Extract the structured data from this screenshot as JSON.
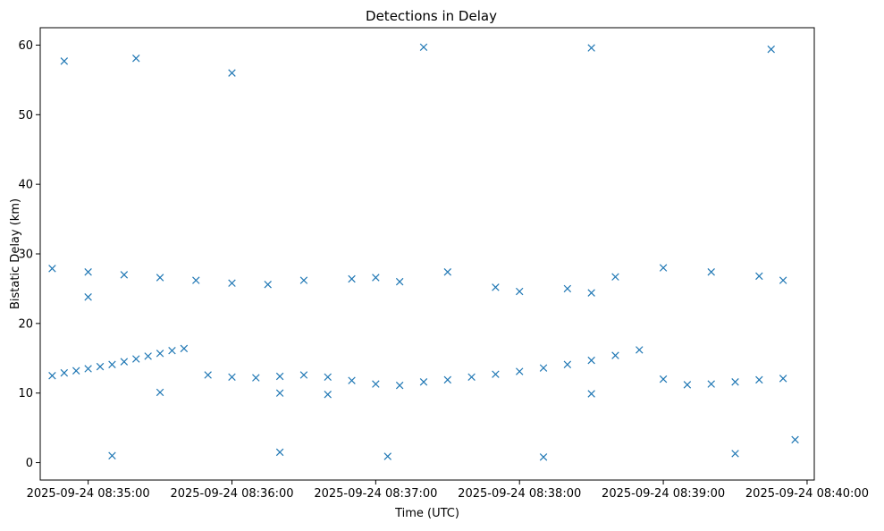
{
  "chart_data": {
    "type": "scatter",
    "title": "Detections in Delay",
    "xlabel": "Time (UTC)",
    "ylabel": "Bistatic Delay (km)",
    "marker": "x",
    "color": "#1f77b4",
    "grid": false,
    "legend": "none",
    "x_axis": {
      "type": "datetime",
      "range": [
        "2025-09-24 08:34:40",
        "2025-09-24 08:40:03"
      ],
      "ticks": [
        "2025-09-24 08:35:00",
        "2025-09-24 08:36:00",
        "2025-09-24 08:37:00",
        "2025-09-24 08:38:00",
        "2025-09-24 08:39:00",
        "2025-09-24 08:40:00"
      ]
    },
    "y_axis": {
      "range": [
        -2.5,
        62.5
      ],
      "ticks": [
        0,
        10,
        20,
        30,
        40,
        50,
        60
      ]
    },
    "series": [
      {
        "description_of_structure": "approximate representative samples",
        "points": [
          [
            "2025-09-24 08:34:45",
            12.5
          ],
          [
            "2025-09-24 08:34:50",
            12.9
          ],
          [
            "2025-09-24 08:34:55",
            13.2
          ],
          [
            "2025-09-24 08:35:00",
            13.5
          ],
          [
            "2025-09-24 08:35:05",
            13.8
          ],
          [
            "2025-09-24 08:35:10",
            14.1
          ],
          [
            "2025-09-24 08:35:15",
            14.5
          ],
          [
            "2025-09-24 08:35:20",
            14.9
          ],
          [
            "2025-09-24 08:35:25",
            15.3
          ],
          [
            "2025-09-24 08:35:30",
            15.7
          ],
          [
            "2025-09-24 08:35:35",
            16.1
          ],
          [
            "2025-09-24 08:35:40",
            16.4
          ],
          [
            "2025-09-24 08:35:50",
            12.6
          ],
          [
            "2025-09-24 08:36:00",
            12.3
          ],
          [
            "2025-09-24 08:36:10",
            12.2
          ],
          [
            "2025-09-24 08:36:20",
            12.4
          ],
          [
            "2025-09-24 08:36:30",
            12.6
          ],
          [
            "2025-09-24 08:36:40",
            12.3
          ],
          [
            "2025-09-24 08:36:50",
            11.8
          ],
          [
            "2025-09-24 08:37:00",
            11.3
          ],
          [
            "2025-09-24 08:37:10",
            11.1
          ],
          [
            "2025-09-24 08:37:20",
            11.6
          ],
          [
            "2025-09-24 08:37:30",
            11.9
          ],
          [
            "2025-09-24 08:37:40",
            12.3
          ],
          [
            "2025-09-24 08:37:50",
            12.7
          ],
          [
            "2025-09-24 08:38:00",
            13.1
          ],
          [
            "2025-09-24 08:38:10",
            13.6
          ],
          [
            "2025-09-24 08:38:20",
            14.1
          ],
          [
            "2025-09-24 08:38:30",
            14.7
          ],
          [
            "2025-09-24 08:38:40",
            15.4
          ],
          [
            "2025-09-24 08:38:50",
            16.2
          ],
          [
            "2025-09-24 08:39:00",
            12.0
          ],
          [
            "2025-09-24 08:39:10",
            11.2
          ],
          [
            "2025-09-24 08:39:20",
            11.3
          ],
          [
            "2025-09-24 08:39:30",
            11.6
          ],
          [
            "2025-09-24 08:39:40",
            11.9
          ],
          [
            "2025-09-24 08:39:50",
            12.1
          ],
          [
            "2025-09-24 08:34:45",
            27.9
          ],
          [
            "2025-09-24 08:35:00",
            27.4
          ],
          [
            "2025-09-24 08:35:15",
            27.0
          ],
          [
            "2025-09-24 08:35:30",
            26.6
          ],
          [
            "2025-09-24 08:35:45",
            26.2
          ],
          [
            "2025-09-24 08:36:00",
            25.8
          ],
          [
            "2025-09-24 08:36:15",
            25.6
          ],
          [
            "2025-09-24 08:36:30",
            26.2
          ],
          [
            "2025-09-24 08:36:50",
            26.4
          ],
          [
            "2025-09-24 08:37:00",
            26.6
          ],
          [
            "2025-09-24 08:37:10",
            26.0
          ],
          [
            "2025-09-24 08:37:30",
            27.4
          ],
          [
            "2025-09-24 08:37:50",
            25.2
          ],
          [
            "2025-09-24 08:38:00",
            24.6
          ],
          [
            "2025-09-24 08:38:20",
            25.0
          ],
          [
            "2025-09-24 08:38:40",
            26.7
          ],
          [
            "2025-09-24 08:39:00",
            28.0
          ],
          [
            "2025-09-24 08:39:20",
            27.4
          ],
          [
            "2025-09-24 08:39:40",
            26.8
          ],
          [
            "2025-09-24 08:39:50",
            26.2
          ],
          [
            "2025-09-24 08:35:30",
            10.1
          ],
          [
            "2025-09-24 08:36:20",
            10.0
          ],
          [
            "2025-09-24 08:36:40",
            9.8
          ],
          [
            "2025-09-24 08:38:30",
            9.9
          ],
          [
            "2025-09-24 08:35:00",
            23.8
          ],
          [
            "2025-09-24 08:38:30",
            24.4
          ],
          [
            "2025-09-24 08:34:50",
            57.7
          ],
          [
            "2025-09-24 08:35:20",
            58.1
          ],
          [
            "2025-09-24 08:36:00",
            56.0
          ],
          [
            "2025-09-24 08:37:20",
            59.7
          ],
          [
            "2025-09-24 08:38:30",
            59.6
          ],
          [
            "2025-09-24 08:39:45",
            59.4
          ],
          [
            "2025-09-24 08:35:10",
            1.0
          ],
          [
            "2025-09-24 08:36:20",
            1.5
          ],
          [
            "2025-09-24 08:37:05",
            0.9
          ],
          [
            "2025-09-24 08:38:10",
            0.8
          ],
          [
            "2025-09-24 08:39:30",
            1.3
          ],
          [
            "2025-09-24 08:39:55",
            3.3
          ]
        ]
      }
    ]
  }
}
